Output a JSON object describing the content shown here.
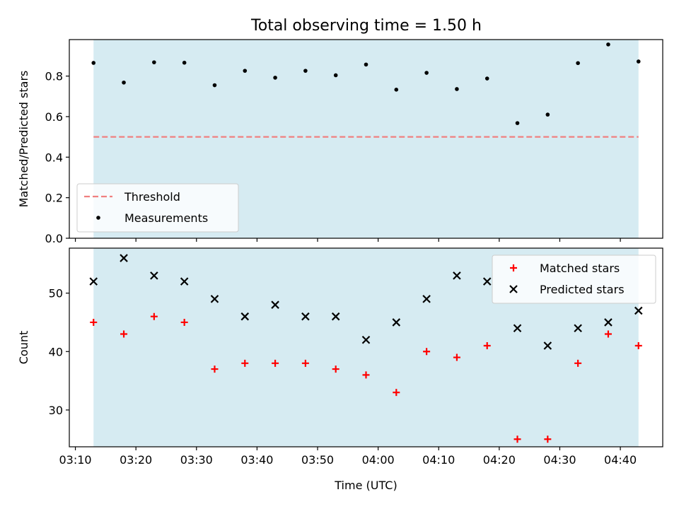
{
  "title": "Total observing time = 1.50 h",
  "chart_data": [
    {
      "type": "scatter",
      "ylabel": "Matched/Predicted stars",
      "xlabel": "",
      "ylim": [
        0,
        0.98
      ],
      "yticks": [
        0.0,
        0.2,
        0.4,
        0.6,
        0.8
      ],
      "shaded_span": {
        "x0": "03:13",
        "x1": "04:43",
        "color": "#add8e6"
      },
      "threshold": {
        "name": "Threshold",
        "value": 0.5,
        "x0": "03:13",
        "x1": "04:43",
        "color": "#f08080"
      },
      "series": [
        {
          "name": "Measurements",
          "color": "#000000",
          "x": [
            "03:13",
            "03:18",
            "03:23",
            "03:28",
            "03:33",
            "03:38",
            "03:43",
            "03:48",
            "03:53",
            "03:58",
            "04:03",
            "04:08",
            "04:13",
            "04:18",
            "04:23",
            "04:28",
            "04:33",
            "04:38",
            "04:43"
          ],
          "values": [
            0.865,
            0.768,
            0.868,
            0.866,
            0.755,
            0.826,
            0.792,
            0.826,
            0.804,
            0.857,
            0.733,
            0.816,
            0.736,
            0.788,
            0.568,
            0.61,
            0.864,
            0.956,
            0.872
          ]
        }
      ],
      "legend": "lower-left",
      "legend_entries": [
        "Threshold",
        "Measurements"
      ]
    },
    {
      "type": "scatter",
      "ylabel": "Count",
      "xlabel": "Time (UTC)",
      "ylim": [
        23.7,
        57.7
      ],
      "yticks": [
        30,
        40,
        50
      ],
      "xticks": [
        "03:10",
        "03:20",
        "03:30",
        "03:40",
        "03:50",
        "04:00",
        "04:10",
        "04:20",
        "04:30",
        "04:40"
      ],
      "xlim": [
        "03:09",
        "04:47"
      ],
      "shaded_span": {
        "x0": "03:13",
        "x1": "04:43",
        "color": "#add8e6"
      },
      "series": [
        {
          "name": "Matched stars",
          "marker": "plus",
          "color": "#ff0000",
          "x": [
            "03:13",
            "03:18",
            "03:23",
            "03:28",
            "03:33",
            "03:38",
            "03:43",
            "03:48",
            "03:53",
            "03:58",
            "04:03",
            "04:08",
            "04:13",
            "04:18",
            "04:23",
            "04:28",
            "04:33",
            "04:38",
            "04:43"
          ],
          "values": [
            45,
            43,
            46,
            45,
            37,
            38,
            38,
            38,
            37,
            36,
            33,
            40,
            39,
            41,
            25,
            25,
            38,
            43,
            41
          ]
        },
        {
          "name": "Predicted stars",
          "marker": "x",
          "color": "#000000",
          "x": [
            "03:13",
            "03:18",
            "03:23",
            "03:28",
            "03:33",
            "03:38",
            "03:43",
            "03:48",
            "03:53",
            "03:58",
            "04:03",
            "04:08",
            "04:13",
            "04:18",
            "04:23",
            "04:28",
            "04:33",
            "04:38",
            "04:43"
          ],
          "values": [
            52,
            56,
            53,
            52,
            49,
            46,
            48,
            46,
            46,
            42,
            45,
            49,
            53,
            52,
            44,
            41,
            44,
            45,
            47
          ]
        }
      ],
      "legend": "upper-right",
      "legend_entries": [
        "Matched stars",
        "Predicted stars"
      ]
    }
  ]
}
